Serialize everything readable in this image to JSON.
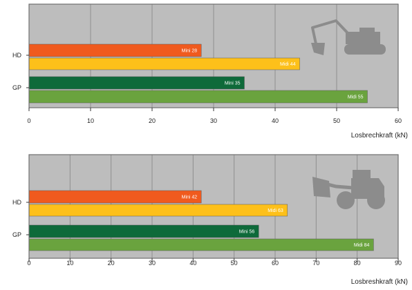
{
  "colors": {
    "plot_bg": "#bdbdbd",
    "gridline": "#8f8f8f",
    "frame": "#6e6e6e",
    "hd_mini": "#f05a1e",
    "hd_midi": "#fdc01a",
    "gp_mini": "#0e6a3a",
    "gp_midi": "#6aa33e",
    "bar_text": "#ffffff",
    "silhouette": "#8c8c8c"
  },
  "icons": [
    "excavator-icon",
    "wheel-loader-icon"
  ],
  "chart_data": [
    {
      "type": "bar",
      "orientation": "horizontal",
      "title": "",
      "xlabel": "Losbrechkraft (kN)",
      "ylabel": "",
      "xlim": [
        0,
        60
      ],
      "xticks": [
        0,
        10,
        20,
        30,
        40,
        50,
        60
      ],
      "xtick_labels": [
        "0",
        "10",
        "20",
        "30",
        "40",
        "50",
        "60"
      ],
      "grid": true,
      "categories": [
        "HD",
        "GP"
      ],
      "bars": [
        {
          "group": "HD",
          "label": "Mini 28",
          "value": 28,
          "color": "#f05a1e"
        },
        {
          "group": "HD",
          "label": "Midi 44",
          "value": 44,
          "color": "#fdc01a"
        },
        {
          "group": "GP",
          "label": "Mini 35",
          "value": 35,
          "color": "#0e6a3a"
        },
        {
          "group": "GP",
          "label": "Midi 55",
          "value": 55,
          "color": "#6aa33e"
        }
      ],
      "icon": "excavator-icon"
    },
    {
      "type": "bar",
      "orientation": "horizontal",
      "title": "",
      "xlabel": "Losbreshkraft (kN)",
      "ylabel": "",
      "xlim": [
        0,
        90
      ],
      "xticks": [
        0,
        10,
        20,
        30,
        40,
        50,
        60,
        70,
        80,
        90
      ],
      "xtick_labels": [
        "0",
        "10",
        "20",
        "30",
        "40",
        "50",
        "60",
        "70",
        "80",
        "90"
      ],
      "grid": true,
      "categories": [
        "HD",
        "GP"
      ],
      "bars": [
        {
          "group": "HD",
          "label": "Mini 42",
          "value": 42,
          "color": "#f05a1e"
        },
        {
          "group": "HD",
          "label": "Midi 63",
          "value": 63,
          "color": "#fdc01a"
        },
        {
          "group": "GP",
          "label": "Mini 56",
          "value": 56,
          "color": "#0e6a3a"
        },
        {
          "group": "GP",
          "label": "Midi 84",
          "value": 84,
          "color": "#6aa33e"
        }
      ],
      "icon": "wheel-loader-icon"
    }
  ]
}
